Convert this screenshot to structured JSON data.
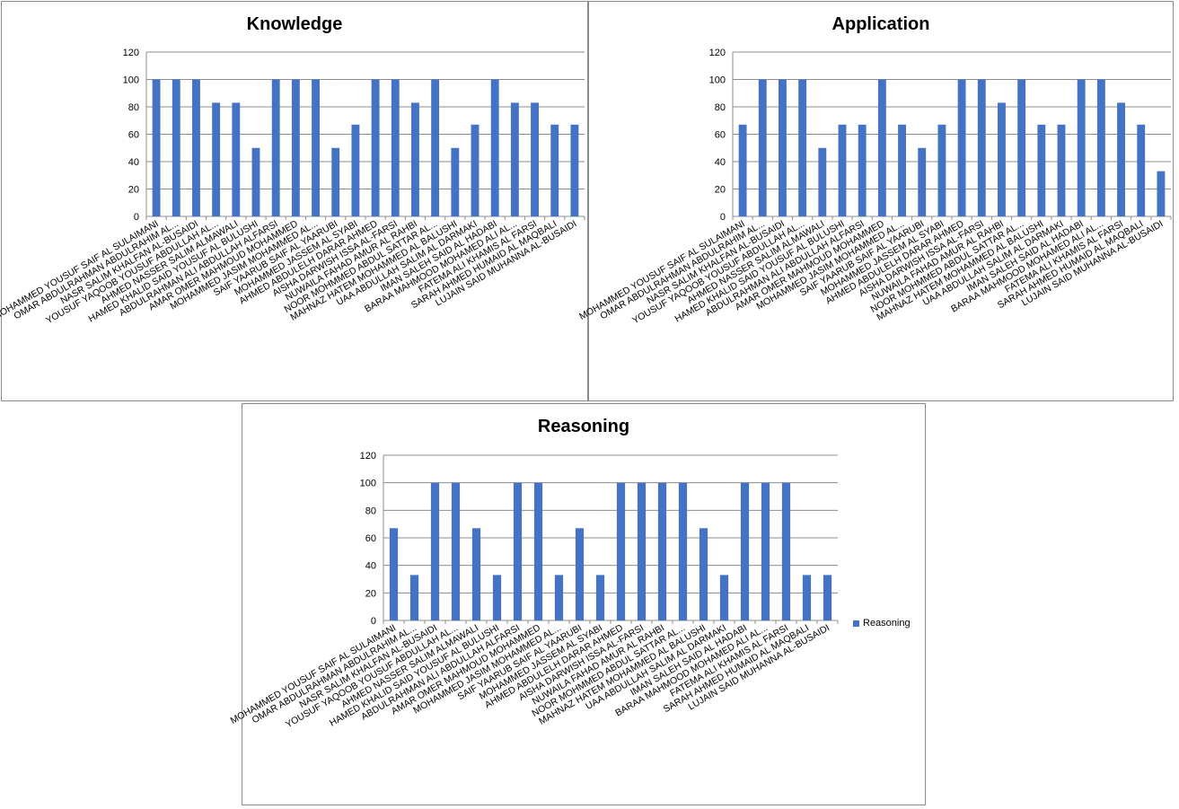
{
  "chart_data": [
    {
      "type": "bar",
      "title": "Knowledge",
      "ylim": [
        0,
        120
      ],
      "yticks": [
        0,
        20,
        40,
        60,
        80,
        100,
        120
      ],
      "grid": true,
      "legend": "none",
      "color": "#4472c4",
      "categories": [
        "MOHAMMED YOUSUF SAIF AL SULAIMANI",
        "OMAR ABDULRAHMAN ABDULRAHIM AL...",
        "NASR SALIM KHALFAN AL-BUSAIDI",
        "YOUSUF YAQOOB YOUSUF ABDULLAH AL...",
        "AHMED NASSER SALIM ALMAWALI",
        "HAMED KHALID SAID YOUSUF AL BULUSHI",
        "ABDULRAHMAN ALI ABDULLAH ALFARSI",
        "AMAR OMER MAHMOUD MOHAMMED",
        "MOHAMMED JASIM MOHAMMED AL...",
        "SAIF YAARUB SAIF AL YAARUBI",
        "MOHAMMED JASSEM AL SYABI",
        "AHMED ABDULELH DARAR AHMED",
        "AISHA DARWISH ISSA AL-FARSI",
        "NUWAILA FAHAD AMUR AL RAHBI",
        "NOOR MOHMMED ABDUL SATTAR AL...",
        "MAHNAZ HATEM MOHAMMED AL BALUSHI",
        "UAA ABDULLAH SALIM AL DARMAKI",
        "IMAN SALEH SAID AL HADABI",
        "BARAA MAHMOOD MOHAMED ALI AL...",
        "FATEMA ALI KHAMIS AL FARSI",
        "SARAH AHMED HUMAID AL MAQBALI",
        "LUJAIN SAID MUHANNA AL-BUSAIDI"
      ],
      "values": [
        100,
        100,
        100,
        83,
        83,
        50,
        100,
        100,
        100,
        50,
        67,
        100,
        100,
        83,
        100,
        50,
        67,
        100,
        83,
        83,
        67,
        67
      ]
    },
    {
      "type": "bar",
      "title": "Application",
      "ylim": [
        0,
        120
      ],
      "yticks": [
        0,
        20,
        40,
        60,
        80,
        100,
        120
      ],
      "grid": true,
      "legend": "none",
      "color": "#4472c4",
      "categories": [
        "MOHAMMED YOUSUF SAIF AL SULAIMANI",
        "OMAR ABDULRAHMAN ABDULRAHIM AL...",
        "NASR SALIM KHALFAN AL-BUSAIDI",
        "YOUSUF YAQOOB YOUSUF ABDULLAH AL...",
        "AHMED NASSER SALIM ALMAWALI",
        "HAMED KHALID SAID YOUSUF AL BULUSHI",
        "ABDULRAHMAN ALI ABDULLAH ALFARSI",
        "AMAR OMER MAHMOUD MOHAMMED",
        "MOHAMMED JASIM MOHAMMED AL...",
        "SAIF YAARUB SAIF AL YAARUBI",
        "MOHAMMED JASSEM AL SYABI",
        "AHMED ABDULELH DARAR AHMED",
        "AISHA DARWISH ISSA AL-FARSI",
        "NUWAILA FAHAD AMUR AL RAHBI",
        "NOOR MOHMMED ABDUL SATTAR AL...",
        "MAHNAZ HATEM MOHAMMED AL BALUSHI",
        "UAA ABDULLAH SALIM AL DARMAKI",
        "IMAN SALEH SAID AL HADABI",
        "BARAA MAHMOOD MOHAMED ALI AL...",
        "FATEMA ALI KHAMIS AL FARSI",
        "SARAH AHMED HUMAID AL MAQBALI",
        "LUJAIN SAID MUHANNA AL-BUSAIDI"
      ],
      "values": [
        67,
        100,
        100,
        100,
        50,
        67,
        67,
        100,
        67,
        50,
        67,
        100,
        100,
        83,
        100,
        67,
        67,
        100,
        100,
        83,
        67,
        33
      ]
    },
    {
      "type": "bar",
      "title": "Reasoning",
      "ylim": [
        0,
        120
      ],
      "yticks": [
        0,
        20,
        40,
        60,
        80,
        100,
        120
      ],
      "grid": true,
      "legend": "right",
      "legend_label": "Reasoning",
      "color": "#4472c4",
      "categories": [
        "MOHAMMED YOUSUF SAIF AL SULAIMANI",
        "OMAR ABDULRAHMAN ABDULRAHIM AL...",
        "NASR SALIM KHALFAN AL-BUSAIDI",
        "YOUSUF YAQOOB YOUSUF ABDULLAH AL...",
        "AHMED NASSER SALIM ALMAWALI",
        "HAMED KHALID SAID YOUSUF AL BULUSHI",
        "ABDULRAHMAN ALI ABDULLAH ALFARSI",
        "AMAR OMER MAHMOUD MOHAMMED",
        "MOHAMMED JASIM MOHAMMED AL...",
        "SAIF YAARUB SAIF AL YAARUBI",
        "MOHAMMED JASSEM AL SYABI",
        "AHMED ABDULELH DARAR AHMED",
        "AISHA DARWISH ISSA AL-FARSI",
        "NUWAILA FAHAD AMUR AL RAHBI",
        "NOOR MOHMMED ABDUL SATTAR AL...",
        "MAHNAZ HATEM MOHAMMED AL BALUSHI",
        "UAA ABDULLAH SALIM AL DARMAKI",
        "IMAN SALEH SAID AL HADABI",
        "BARAA MAHMOOD MOHAMED ALI AL...",
        "FATEMA ALI KHAMIS AL FARSI",
        "SARAH AHMED HUMAID AL MAQBALI",
        "LUJAIN SAID MUHANNA AL-BUSAIDI"
      ],
      "values": [
        67,
        33,
        100,
        100,
        67,
        33,
        100,
        100,
        33,
        67,
        33,
        100,
        100,
        100,
        100,
        67,
        33,
        100,
        100,
        100,
        33,
        33
      ]
    }
  ]
}
